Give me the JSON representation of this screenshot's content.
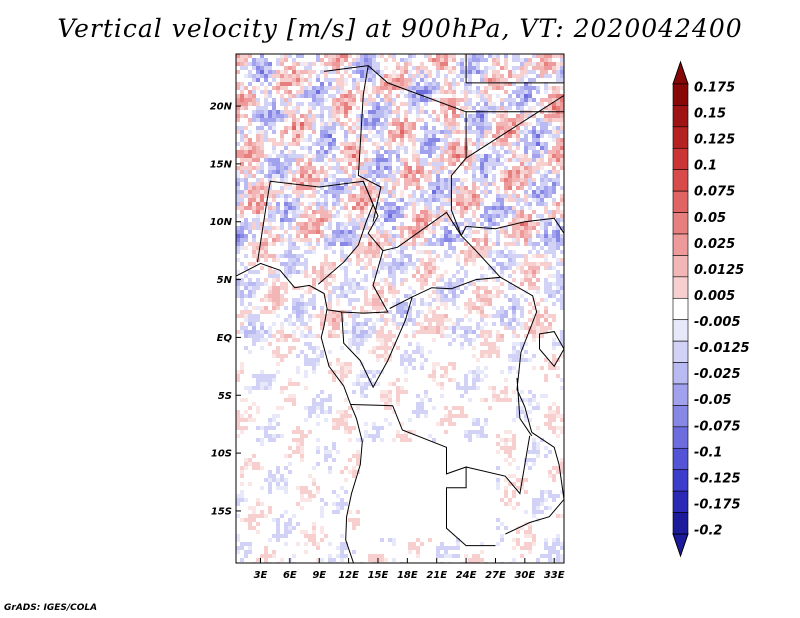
{
  "plot": {
    "title": "Vertical velocity [m/s] at 900hPa, VT: 2020042400",
    "credit": "GrADS: IGES/COLA"
  },
  "chart_data": {
    "type": "heatmap",
    "variable": "Vertical velocity",
    "units": "m/s",
    "level": "900hPa",
    "valid_time": "2020042400",
    "lon_ticks": [
      "3E",
      "6E",
      "9E",
      "12E",
      "15E",
      "18E",
      "21E",
      "24E",
      "27E",
      "30E",
      "33E"
    ],
    "lon_values": [
      3,
      6,
      9,
      12,
      15,
      18,
      21,
      24,
      27,
      30,
      33
    ],
    "lat_ticks": [
      "20N",
      "15N",
      "10N",
      "5N",
      "EQ",
      "5S",
      "10S",
      "15S"
    ],
    "lat_values": [
      20,
      15,
      10,
      5,
      0,
      -5,
      -10,
      -15
    ],
    "lon_range": [
      0.5,
      34
    ],
    "lat_range": [
      -19.5,
      24.5
    ],
    "colorbar": {
      "labels": [
        "0.175",
        "0.15",
        "0.125",
        "0.1",
        "0.075",
        "0.05",
        "0.025",
        "0.0125",
        "0.005",
        "-0.005",
        "-0.0125",
        "-0.025",
        "-0.05",
        "-0.075",
        "-0.1",
        "-0.125",
        "-0.175",
        "-0.2"
      ],
      "colors": [
        "#ffffff",
        "#fbe6e6",
        "#f7cfcf",
        "#f3b6b6",
        "#ee9a9a",
        "#e87f7f",
        "#e06464",
        "#d84b4b",
        "#cc3535",
        "#b52222",
        "#9e1414",
        "#880808",
        "#e8e8fb",
        "#d2d2f7",
        "#babaf2",
        "#a1a1ed",
        "#8787e6",
        "#6d6ddf",
        "#5454d6",
        "#3d3dcc",
        "#2a2ab5",
        "#1b1b9c",
        "#0e0e82"
      ]
    }
  }
}
